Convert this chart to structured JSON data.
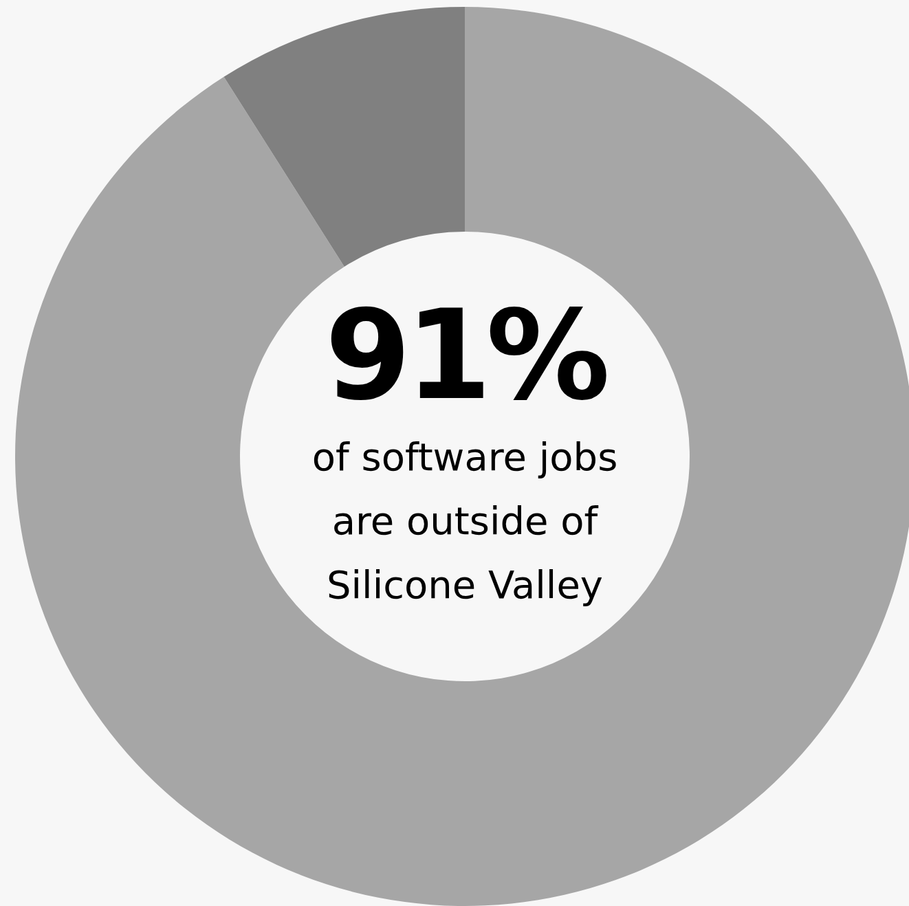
{
  "chart_data": {
    "type": "donut",
    "categories": [
      null,
      null
    ],
    "values": [
      91,
      9
    ],
    "colors": [
      "#a6a6a6",
      "#808080"
    ],
    "value_labels": [
      "91%",
      null
    ],
    "annotations": [
      "of software jobs\nare outside of\nSilicone Valley"
    ]
  }
}
